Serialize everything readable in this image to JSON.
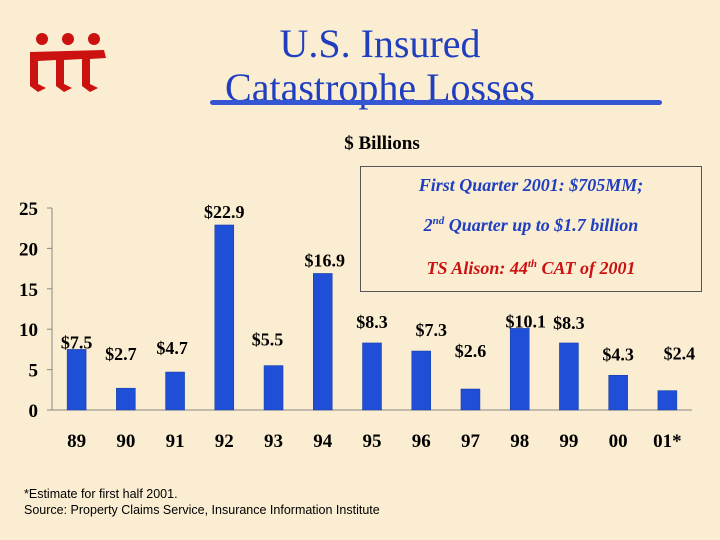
{
  "brand": {
    "logo_text": "iii",
    "accent_color": "#cc1111"
  },
  "title": {
    "line1": "U.S. Insured",
    "line2": "Catastrophe Losses"
  },
  "chart_data": {
    "type": "bar",
    "unit_label": "$ Billions",
    "categories": [
      "89",
      "90",
      "91",
      "92",
      "93",
      "94",
      "95",
      "96",
      "97",
      "98",
      "99",
      "00",
      "01*"
    ],
    "values": [
      7.5,
      2.7,
      4.7,
      22.9,
      5.5,
      16.9,
      8.3,
      7.3,
      2.6,
      10.1,
      8.3,
      4.3,
      2.4
    ],
    "data_labels": [
      "$7.5",
      "$2.7",
      "$4.7",
      "$22.9",
      "$5.5",
      "$16.9",
      "$8.3",
      "$7.3",
      "$2.6",
      "$10.1",
      "$8.3",
      "$4.3",
      "$2.4"
    ],
    "ylim": [
      0,
      25
    ],
    "yticks": [
      0,
      5,
      10,
      15,
      20,
      25
    ],
    "bar_color": "#1f4fd6",
    "grid": false
  },
  "note": {
    "line1": "First Quarter 2001: $705MM;",
    "line2_prefix": "2",
    "line2_sup": "nd",
    "line2_suffix": " Quarter up to $1.7 billion",
    "line3_prefix": "TS Alison: 44",
    "line3_sup": "th",
    "line3_suffix": " CAT of 2001",
    "line3_color": "#cc1111"
  },
  "footnote": "*Estimate for first half 2001.",
  "source": "Source:  Property Claims Service, Insurance Information Institute"
}
